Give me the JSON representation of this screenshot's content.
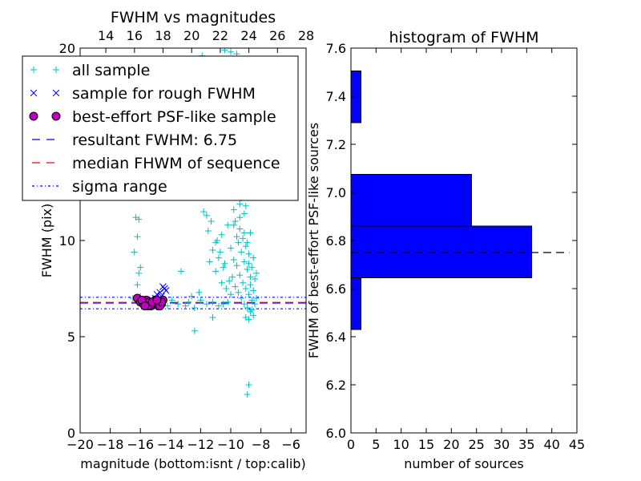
{
  "chart_data": [
    {
      "type": "scatter",
      "title": "FWHM vs magnitudes",
      "xlabel": "magnitude (bottom:isnt / top:calib)",
      "ylabel": "FWHM (pix)",
      "xlim": [
        -20,
        -5
      ],
      "ylim": [
        0,
        20
      ],
      "xticks": [
        "−20",
        "−18",
        "−16",
        "−14",
        "−12",
        "−10",
        "−8",
        "−6"
      ],
      "xtick_values": [
        -20,
        -18,
        -16,
        -14,
        -12,
        -10,
        -8,
        -6
      ],
      "top_xticks": [
        "14",
        "16",
        "18",
        "20",
        "22",
        "24",
        "26",
        "28"
      ],
      "top_xtick_values": [
        14,
        16,
        18,
        20,
        22,
        24,
        26,
        28
      ],
      "top_xlim": [
        12.2,
        28
      ],
      "yticks": [
        "0",
        "5",
        "10",
        "15",
        "20"
      ],
      "ytick_values": [
        0,
        5,
        10,
        15,
        20
      ],
      "series": [
        {
          "name": "all sample",
          "marker": "+",
          "color": "#00bfbf",
          "points": [
            [
              -16.3,
              11.2
            ],
            [
              -16.1,
              11.1
            ],
            [
              -16.2,
              10.2
            ],
            [
              -16.4,
              9.4
            ],
            [
              -16.0,
              8.6
            ],
            [
              -16.1,
              8.3
            ],
            [
              -16.2,
              7.7
            ],
            [
              -16.5,
              7.0
            ],
            [
              -16.0,
              7.1
            ],
            [
              -15.7,
              6.9
            ],
            [
              -15.2,
              6.8
            ],
            [
              -14.8,
              6.7
            ],
            [
              -14.2,
              6.6
            ],
            [
              -13.9,
              6.9
            ],
            [
              -13.5,
              6.7
            ],
            [
              -13.0,
              6.6
            ],
            [
              -12.8,
              6.8
            ],
            [
              -12.4,
              6.5
            ],
            [
              -12.0,
              6.9
            ],
            [
              -11.6,
              6.7
            ],
            [
              -11.2,
              6.8
            ],
            [
              -10.8,
              6.6
            ],
            [
              -10.5,
              6.7
            ],
            [
              -10.2,
              6.8
            ],
            [
              -13.3,
              8.4
            ],
            [
              -12.4,
              5.3
            ],
            [
              -11.2,
              6.0
            ],
            [
              -11.8,
              11.5
            ],
            [
              -11.6,
              11.3
            ],
            [
              -11.3,
              11.0
            ],
            [
              -11.5,
              10.5
            ],
            [
              -11.0,
              9.9
            ],
            [
              -10.6,
              10.3
            ],
            [
              -10.2,
              10.8
            ],
            [
              -11.2,
              9.5
            ],
            [
              -10.8,
              9.1
            ],
            [
              -10.4,
              8.8
            ],
            [
              -11.0,
              8.4
            ],
            [
              -10.6,
              7.8
            ],
            [
              -10.3,
              7.5
            ],
            [
              -10.0,
              7.2
            ],
            [
              -9.8,
              11.6
            ],
            [
              -9.6,
              12.4
            ],
            [
              -9.4,
              11.9
            ],
            [
              -9.2,
              13.1
            ],
            [
              -9.5,
              12.8
            ],
            [
              -9.3,
              12.2
            ],
            [
              -9.1,
              11.4
            ],
            [
              -9.7,
              11.0
            ],
            [
              -9.4,
              10.6
            ],
            [
              -9.2,
              10.1
            ],
            [
              -9.0,
              9.7
            ],
            [
              -8.8,
              9.3
            ],
            [
              -9.5,
              9.9
            ],
            [
              -9.3,
              9.4
            ],
            [
              -9.1,
              8.9
            ],
            [
              -8.9,
              8.5
            ],
            [
              -8.7,
              8.1
            ],
            [
              -9.6,
              8.7
            ],
            [
              -9.4,
              8.2
            ],
            [
              -9.2,
              7.8
            ],
            [
              -9.0,
              7.5
            ],
            [
              -8.8,
              7.2
            ],
            [
              -8.6,
              6.9
            ],
            [
              -9.7,
              7.6
            ],
            [
              -9.5,
              7.3
            ],
            [
              -9.3,
              7.0
            ],
            [
              -9.1,
              6.7
            ],
            [
              -8.9,
              6.5
            ],
            [
              -8.7,
              6.3
            ],
            [
              -8.5,
              6.1
            ],
            [
              -9.0,
              6.0
            ],
            [
              -8.8,
              5.9
            ],
            [
              -8.6,
              6.4
            ],
            [
              -8.4,
              6.7
            ],
            [
              -8.3,
              7.0
            ],
            [
              -8.5,
              7.4
            ],
            [
              -8.7,
              7.7
            ],
            [
              -8.4,
              8.0
            ],
            [
              -8.6,
              8.6
            ],
            [
              -8.8,
              8.8
            ],
            [
              -8.5,
              9.1
            ],
            [
              -8.3,
              8.3
            ],
            [
              -9.9,
              8.1
            ],
            [
              -10.1,
              7.9
            ],
            [
              -9.8,
              9.0
            ],
            [
              -10.0,
              9.6
            ],
            [
              -9.6,
              10.2
            ],
            [
              -9.8,
              10.8
            ],
            [
              -9.4,
              11.2
            ],
            [
              -9.2,
              12.5
            ],
            [
              -9.0,
              11.8
            ],
            [
              -9.3,
              13.6
            ],
            [
              -9.6,
              13.2
            ],
            [
              -9.1,
              10.4
            ],
            [
              -8.9,
              9.9
            ],
            [
              -8.7,
              10.4
            ],
            [
              -10.5,
              8.6
            ],
            [
              -10.7,
              9.4
            ],
            [
              -10.9,
              10.0
            ],
            [
              -11.4,
              8.9
            ],
            [
              -12.1,
              7.3
            ],
            [
              -12.6,
              7.1
            ],
            [
              -8.8,
              2.5
            ],
            [
              -8.9,
              2.0
            ],
            [
              -11.2,
              19.4
            ],
            [
              -10.4,
              19.9
            ],
            [
              -9.6,
              19.7
            ],
            [
              -10.0,
              19.8
            ],
            [
              -11.9,
              19.6
            ]
          ]
        },
        {
          "name": "sample for rough FWHM",
          "marker": "x",
          "color": "#0000ff",
          "points": [
            [
              -14.5,
              7.6
            ],
            [
              -14.4,
              7.5
            ],
            [
              -14.7,
              7.3
            ],
            [
              -14.6,
              7.1
            ],
            [
              -14.8,
              6.9
            ],
            [
              -15.0,
              7.0
            ],
            [
              -14.3,
              7.4
            ],
            [
              -15.2,
              6.9
            ],
            [
              -14.9,
              7.2
            ]
          ]
        },
        {
          "name": "best-effort PSF-like sample",
          "marker": "o",
          "color": "#bf00bf",
          "points": [
            [
              -16.2,
              7.0
            ],
            [
              -16.0,
              6.8
            ],
            [
              -15.8,
              6.7
            ],
            [
              -15.6,
              6.9
            ],
            [
              -15.4,
              6.8
            ],
            [
              -15.3,
              6.6
            ],
            [
              -15.1,
              6.7
            ],
            [
              -15.0,
              6.9
            ],
            [
              -14.9,
              6.7
            ],
            [
              -14.8,
              6.6
            ],
            [
              -14.7,
              6.8
            ],
            [
              -14.6,
              6.7
            ],
            [
              -14.5,
              6.9
            ],
            [
              -15.5,
              6.6
            ],
            [
              -15.9,
              6.9
            ],
            [
              -14.7,
              6.6
            ],
            [
              -15.2,
              6.8
            ],
            [
              -14.6,
              6.8
            ],
            [
              -15.7,
              6.6
            ],
            [
              -14.9,
              6.9
            ]
          ]
        }
      ],
      "lines": [
        {
          "name": "resultant FWHM: 6.75",
          "y": 6.75,
          "color": "#0000ff",
          "style": "dashed"
        },
        {
          "name": "median FHWM of sequence",
          "y": 6.78,
          "color": "#ff0000",
          "style": "dashed"
        },
        {
          "name": "sigma range",
          "y": [
            6.45,
            7.05
          ],
          "color": "#0000ff",
          "style": "dashdot"
        }
      ],
      "legend": {
        "position": "top-left",
        "entries": [
          "all sample",
          "sample for rough FWHM",
          "best-effort PSF-like sample",
          "resultant FWHM: 6.75",
          "median FHWM of sequence",
          "sigma range"
        ]
      }
    },
    {
      "type": "bar",
      "orientation": "horizontal",
      "title": "histogram of FWHM",
      "xlabel": "number of sources",
      "ylabel": "FWHM of best-effort PSF-like sources",
      "xlim": [
        0,
        45
      ],
      "ylim": [
        6.0,
        7.6
      ],
      "xticks": [
        "0",
        "5",
        "10",
        "15",
        "20",
        "25",
        "30",
        "35",
        "40",
        "45"
      ],
      "xtick_values": [
        0,
        5,
        10,
        15,
        20,
        25,
        30,
        35,
        40,
        45
      ],
      "yticks": [
        "6.0",
        "6.2",
        "6.4",
        "6.6",
        "6.8",
        "7.0",
        "7.2",
        "7.4",
        "7.6"
      ],
      "ytick_values": [
        6.0,
        6.2,
        6.4,
        6.6,
        6.8,
        7.0,
        7.2,
        7.4,
        7.6
      ],
      "bins": [
        {
          "low": 6.43,
          "high": 6.645,
          "count": 2
        },
        {
          "low": 6.645,
          "high": 6.86,
          "count": 36
        },
        {
          "low": 6.86,
          "high": 7.075,
          "count": 24
        },
        {
          "low": 7.075,
          "high": 7.29,
          "count": 0
        },
        {
          "low": 7.29,
          "high": 7.505,
          "count": 2
        }
      ],
      "bar_color": "#0000ff",
      "reference_line": {
        "y": 6.75,
        "x_range": [
          0,
          43.5
        ],
        "style": "dashed",
        "color": "#000000"
      }
    }
  ]
}
